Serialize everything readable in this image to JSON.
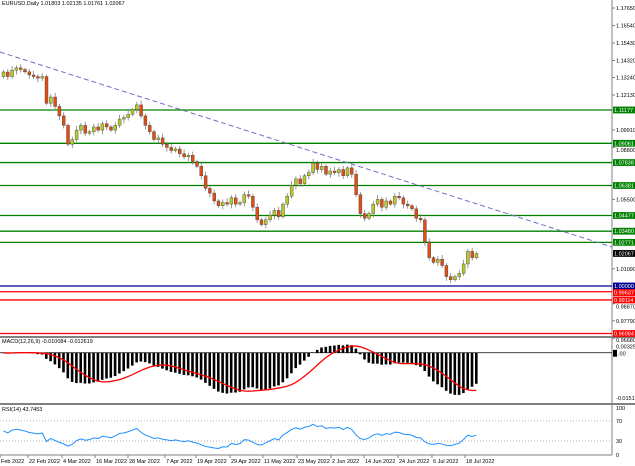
{
  "header": {
    "symbol": "EURUSD,Daily",
    "ohlc": "1.01803 1.02135 1.01761 1.02067"
  },
  "macd_panel": {
    "label": "MACD(12,26,9) -0.010084 -0.012619",
    "top_label": "0.003255",
    "zero_label": ".00",
    "bottom_label": "-0.015175",
    "range": [
      -0.015175,
      0.003255
    ],
    "hist_color": "#000000",
    "signal_color": "#ff0000"
  },
  "rsi_panel": {
    "label": "RSI(14) 43.7453",
    "levels": [
      100,
      70,
      30,
      0
    ],
    "level_labels": [
      "100",
      "70",
      "30",
      "0"
    ],
    "line_color": "#1e90ff"
  },
  "colors": {
    "bull": "#b8c82a",
    "bear": "#e04e12",
    "candle_outline": "#404040",
    "support": "#008000",
    "round": "#000090",
    "red_level": "#ff0000",
    "trendline": "#7070c8",
    "current": "#000000"
  },
  "chart_data": {
    "type": "candlestick",
    "symbol": "EURUSD",
    "timeframe": "Daily",
    "ylim": [
      0.9615,
      1.182
    ],
    "price_ticks": [
      "1.17650",
      "1.16540",
      "1.15430",
      "1.14320",
      "1.13240",
      "1.12130",
      "1.09910",
      "1.08800",
      "1.05500",
      "1.01090",
      "0.98870",
      "0.97790",
      "0.96680"
    ],
    "x_tick_labels": [
      "Feb 2022",
      "22 Feb 2022",
      "4 Mar 2022",
      "16 Mar 2022",
      "28 Mar 2022",
      "7 Apr 2022",
      "19 Apr 2022",
      "29 Apr 2022",
      "11 May 2022",
      "23 May 2022",
      "2 Jun 2022",
      "14 Jun 2022",
      "24 Jun 2022",
      "6 Jul 2022",
      "18 Jul 2022"
    ],
    "closes": [
      1.1359,
      1.133,
      1.137,
      1.1385,
      1.1375,
      1.136,
      1.134,
      1.133,
      1.132,
      1.133,
      1.116,
      1.12,
      1.114,
      1.108,
      1.102,
      1.09,
      1.093,
      1.099,
      1.102,
      1.097,
      1.098,
      1.101,
      1.099,
      1.103,
      1.101,
      1.099,
      1.102,
      1.106,
      1.107,
      1.109,
      1.112,
      1.115,
      1.108,
      1.102,
      1.098,
      1.093,
      1.094,
      1.09,
      1.088,
      1.086,
      1.087,
      1.084,
      1.082,
      1.083,
      1.079,
      1.076,
      1.07,
      1.062,
      1.059,
      1.054,
      1.051,
      1.053,
      1.052,
      1.056,
      1.052,
      1.053,
      1.058,
      1.057,
      1.05,
      1.042,
      1.039,
      1.042,
      1.045,
      1.048,
      1.044,
      1.052,
      1.057,
      1.064,
      1.068,
      1.065,
      1.07,
      1.072,
      1.078,
      1.074,
      1.076,
      1.071,
      1.073,
      1.072,
      1.074,
      1.07,
      1.075,
      1.071,
      1.058,
      1.046,
      1.043,
      1.046,
      1.052,
      1.055,
      1.05,
      1.054,
      1.052,
      1.057,
      1.056,
      1.052,
      1.051,
      1.049,
      1.043,
      1.042,
      1.028,
      1.018,
      1.015,
      1.017,
      1.013,
      1.006,
      1.004,
      1.006,
      1.008,
      1.014,
      1.022,
      1.018,
      1.02067
    ],
    "first_open": 1.133,
    "horizontal_levels": [
      {
        "price": 1.11177,
        "label": "1.11177",
        "kind": "support"
      },
      {
        "price": 1.09061,
        "label": "1.09061",
        "kind": "support"
      },
      {
        "price": 1.07838,
        "label": "1.07838",
        "kind": "support"
      },
      {
        "price": 1.06381,
        "label": "1.06381",
        "kind": "support"
      },
      {
        "price": 1.04477,
        "label": "1.04477",
        "kind": "support"
      },
      {
        "price": 1.0348,
        "label": "1.03480",
        "kind": "support"
      },
      {
        "price": 1.02771,
        "label": "1.02771",
        "kind": "support"
      },
      {
        "price": 1.0,
        "label": "1.00000",
        "kind": "round"
      },
      {
        "price": 0.99637,
        "label": "0.99637",
        "kind": "red_level"
      },
      {
        "price": 0.99114,
        "label": "0.99114",
        "kind": "red_level"
      },
      {
        "price": 0.96984,
        "label": "0.96984",
        "kind": "red_level"
      }
    ],
    "current_price": {
      "price": 1.02067,
      "label": "1.02067"
    },
    "trendline": {
      "type": "dashed",
      "direction": "descending"
    }
  }
}
